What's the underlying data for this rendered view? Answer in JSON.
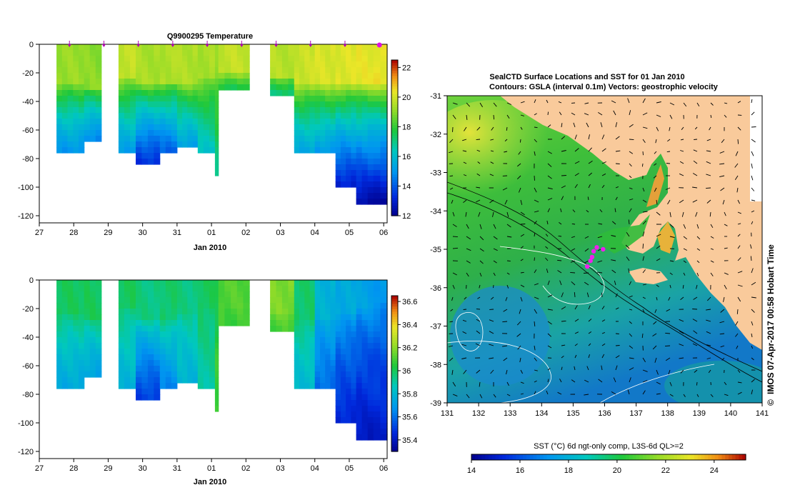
{
  "chart_data": [
    {
      "type": "heatmap",
      "title": "Q9900295  Temperature",
      "xlabel": "Jan 2010",
      "x_ticks": [
        "27",
        "28",
        "29",
        "30",
        "31",
        "01",
        "02",
        "03",
        "04",
        "05",
        "06"
      ],
      "y_ticks": [
        "0",
        "-20",
        "-40",
        "-60",
        "-80",
        "-100",
        "-120"
      ],
      "xlim": [
        27,
        37.1
      ],
      "ylim": [
        -125,
        0
      ],
      "profile_markers": [
        28,
        29,
        30,
        31,
        32,
        33,
        34,
        35,
        36,
        37
      ],
      "colorbar": {
        "min": 12,
        "max": 22.5,
        "ticks": [
          "12",
          "14",
          "16",
          "18",
          "20",
          "22"
        ]
      },
      "columns": [
        {
          "x": [
            27.5,
            28.3
          ],
          "bottom": -76,
          "mixed_top": -30,
          "surface": 19.2,
          "deep": 15.0
        },
        {
          "x": [
            28.3,
            28.8
          ],
          "bottom": -71,
          "mixed_top": -32,
          "surface": 19.0,
          "deep": 14.6
        },
        {
          "x": [
            29.3,
            29.8
          ],
          "bottom": -76,
          "mixed_top": -25,
          "surface": 19.8,
          "deep": 15.2
        },
        {
          "x": [
            29.8,
            30.5
          ],
          "bottom": -86,
          "mixed_top": -30,
          "surface": 19.4,
          "deep": 13.3
        },
        {
          "x": [
            30.5,
            31.0
          ],
          "bottom": -76,
          "mixed_top": -28,
          "surface": 19.5,
          "deep": 14.2
        },
        {
          "x": [
            31.0,
            31.6
          ],
          "bottom": -74,
          "mixed_top": -30,
          "surface": 19.5,
          "deep": 15.2
        },
        {
          "x": [
            31.6,
            32.1
          ],
          "bottom": -77,
          "mixed_top": -25,
          "surface": 19.4,
          "deep": 16.2
        },
        {
          "x": [
            32.1,
            32.2
          ],
          "bottom": -92,
          "mixed_top": -25,
          "surface": 19.0,
          "deep": 17.0
        },
        {
          "x": [
            32.2,
            33.1
          ],
          "bottom": -34,
          "mixed_top": -22,
          "surface": 19.8,
          "deep": 17.4
        },
        {
          "x": [
            33.7,
            34.4
          ],
          "bottom": -36,
          "mixed_top": -24,
          "surface": 19.6,
          "deep": 17.2
        },
        {
          "x": [
            34.4,
            35.0
          ],
          "bottom": -79,
          "mixed_top": -30,
          "surface": 19.9,
          "deep": 15.3
        },
        {
          "x": [
            35.0,
            35.6
          ],
          "bottom": -78,
          "mixed_top": -30,
          "surface": 20.1,
          "deep": 15.0
        },
        {
          "x": [
            35.6,
            36.2
          ],
          "bottom": -102,
          "mixed_top": -30,
          "surface": 20.2,
          "deep": 13.0
        },
        {
          "x": [
            36.2,
            36.7
          ],
          "bottom": -113,
          "mixed_top": -30,
          "surface": 20.3,
          "deep": 12.4
        },
        {
          "x": [
            36.7,
            37.1
          ],
          "bottom": -113,
          "mixed_top": -30,
          "surface": 20.4,
          "deep": 12.3
        }
      ]
    },
    {
      "type": "heatmap",
      "title": "",
      "xlabel": "Jan 2010",
      "x_ticks": [
        "27",
        "28",
        "29",
        "30",
        "31",
        "01",
        "02",
        "03",
        "04",
        "05",
        "06"
      ],
      "y_ticks": [
        "0",
        "-20",
        "-40",
        "-60",
        "-80",
        "-100",
        "-120"
      ],
      "xlim": [
        27,
        37.1
      ],
      "ylim": [
        -125,
        0
      ],
      "colorbar": {
        "min": 35.3,
        "max": 36.65,
        "ticks": [
          "35.4",
          "35.6",
          "35.8",
          "36",
          "36.2",
          "36.4",
          "36.6"
        ]
      },
      "columns": [
        {
          "x": [
            27.5,
            28.3
          ],
          "bottom": -76,
          "mixed_top": -25,
          "surface": 36.0,
          "deep": 35.75
        },
        {
          "x": [
            28.3,
            28.8
          ],
          "bottom": -71,
          "mixed_top": -28,
          "surface": 36.0,
          "deep": 35.72
        },
        {
          "x": [
            29.3,
            29.8
          ],
          "bottom": -76,
          "mixed_top": -20,
          "surface": 36.0,
          "deep": 35.78
        },
        {
          "x": [
            29.8,
            30.5
          ],
          "bottom": -86,
          "mixed_top": -30,
          "surface": 35.95,
          "deep": 35.5
        },
        {
          "x": [
            30.5,
            31.0
          ],
          "bottom": -76,
          "mixed_top": -30,
          "surface": 35.98,
          "deep": 35.65
        },
        {
          "x": [
            31.0,
            31.6
          ],
          "bottom": -74,
          "mixed_top": -25,
          "surface": 35.95,
          "deep": 35.78
        },
        {
          "x": [
            31.6,
            32.1
          ],
          "bottom": -77,
          "mixed_top": -20,
          "surface": 36.0,
          "deep": 35.9
        },
        {
          "x": [
            32.1,
            32.2
          ],
          "bottom": -92,
          "mixed_top": -20,
          "surface": 36.0,
          "deep": 36.1
        },
        {
          "x": [
            32.2,
            33.1
          ],
          "bottom": -34,
          "mixed_top": -20,
          "surface": 36.12,
          "deep": 36.08
        },
        {
          "x": [
            33.7,
            34.4
          ],
          "bottom": -36,
          "mixed_top": -25,
          "surface": 36.18,
          "deep": 36.1
        },
        {
          "x": [
            34.4,
            35.0
          ],
          "bottom": -79,
          "mixed_top": -30,
          "surface": 35.98,
          "deep": 35.8
        },
        {
          "x": [
            35.0,
            35.6
          ],
          "bottom": -78,
          "mixed_top": -28,
          "surface": 35.78,
          "deep": 35.6
        },
        {
          "x": [
            35.6,
            36.2
          ],
          "bottom": -102,
          "mixed_top": -25,
          "surface": 35.75,
          "deep": 35.45
        },
        {
          "x": [
            36.2,
            36.7
          ],
          "bottom": -113,
          "mixed_top": -22,
          "surface": 35.72,
          "deep": 35.4
        },
        {
          "x": [
            36.7,
            37.1
          ],
          "bottom": -113,
          "mixed_top": -18,
          "surface": 35.7,
          "deep": 35.42
        }
      ]
    },
    {
      "type": "heatmap",
      "title": "SealCTD Surface Locations and SST for 01 Jan 2010",
      "subtitle": "Contours: GSLA (interval 0.1m) Vectors: geostrophic velocity",
      "xlabel": "",
      "x_ticks": [
        "131",
        "132",
        "133",
        "134",
        "135",
        "136",
        "137",
        "138",
        "139",
        "140",
        "141"
      ],
      "y_ticks": [
        "-31",
        "-32",
        "-33",
        "-34",
        "-35",
        "-36",
        "-37",
        "-38",
        "-39"
      ],
      "xlim": [
        131,
        141
      ],
      "ylim": [
        -39,
        -31
      ],
      "colorbar_label": "SST (°C) 6d ngt-only comp, L3S-6d QL>=2",
      "colorbar": {
        "min": 14,
        "max": 25.3,
        "ticks": [
          "14",
          "16",
          "18",
          "20",
          "22",
          "24"
        ]
      },
      "seal_locations": [
        [
          135.6,
          -35.2
        ],
        [
          135.65,
          -35.05
        ],
        [
          135.75,
          -34.95
        ],
        [
          135.45,
          -35.45
        ],
        [
          135.95,
          -35.0
        ],
        [
          135.55,
          -35.3
        ]
      ],
      "credit": "IMOS 07-Apr-2017 00:58 Hobart Time",
      "credit_symbol": "©"
    }
  ]
}
